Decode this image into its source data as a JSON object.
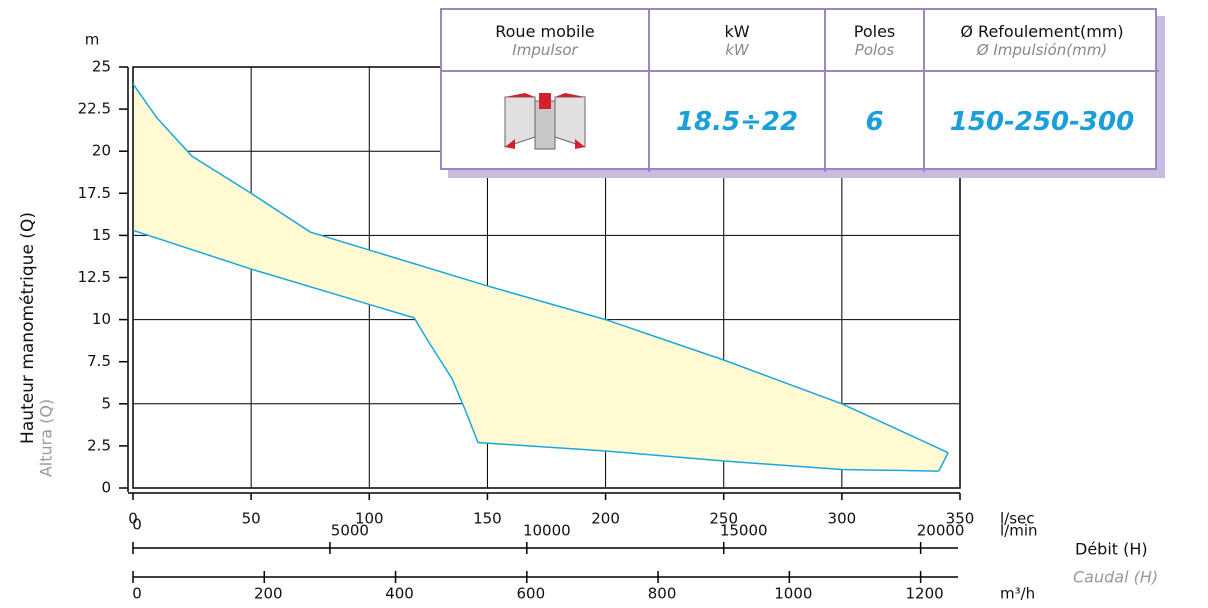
{
  "chart_data": {
    "type": "area",
    "y_unit": "m",
    "y_label": "Hauteur manométrique (Q)",
    "y_label_alt": "Altura (Q)",
    "x_unit": "l/sec",
    "x_label": "Débit (H)",
    "x_label_alt": "Caudal (H)",
    "xlim": [
      0,
      350
    ],
    "xticks": [
      0,
      50,
      100,
      150,
      200,
      250,
      300,
      350
    ],
    "ylim": [
      0,
      25
    ],
    "yticks": [
      0,
      2.5,
      5,
      7.5,
      10,
      12.5,
      15,
      17.5,
      20,
      22.5,
      25
    ],
    "grid": true,
    "fill_color": "#fffad2",
    "secondary_axes": [
      {
        "unit": "l/min",
        "xlim": [
          0,
          21000
        ],
        "xticks": [
          0,
          5000,
          10000,
          15000,
          20000
        ]
      },
      {
        "unit": "m³/h",
        "xlim": [
          0,
          1260
        ],
        "xticks": [
          0,
          200,
          400,
          600,
          800,
          1000,
          1200
        ]
      }
    ],
    "series": [
      {
        "color": "#1aa7e0",
        "x": [
          0,
          10,
          25,
          50,
          75,
          150,
          200,
          250,
          300,
          345
        ],
        "values": [
          24,
          22,
          19.7,
          17.5,
          15.2,
          12,
          10,
          7.6,
          5,
          2.1
        ]
      },
      {
        "color": "#1aa7e0",
        "x": [
          0,
          50,
          100,
          119,
          125,
          135,
          141,
          146,
          200,
          250,
          300,
          341
        ],
        "values": [
          15.3,
          13,
          10.9,
          10.1,
          8.7,
          6.5,
          4.5,
          2.7,
          2.2,
          1.6,
          1.1,
          1
        ]
      }
    ]
  },
  "table": {
    "header": [
      {
        "label": "Roue mobile",
        "label_alt": "Impulsor"
      },
      {
        "label": "kW",
        "label_alt": "kW"
      },
      {
        "label": "Poles",
        "label_alt": "Polos"
      },
      {
        "label": "Ø Refoulement(mm)",
        "label_alt": "Ø Impulsión(mm)"
      }
    ],
    "row": [
      "18.5÷22",
      "6",
      "150-250-300"
    ]
  }
}
